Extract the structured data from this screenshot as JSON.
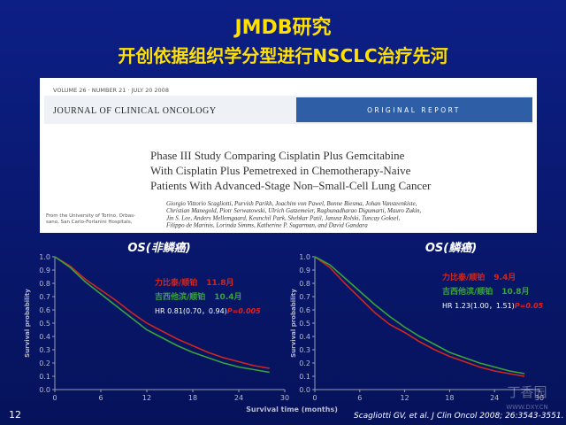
{
  "slide": {
    "title": "JMDB研究",
    "subtitle": "开创依据组织学分型进行NSCLC治疗先河",
    "x_label": "Survival time (months)",
    "page_number": "12",
    "citation": "Scagliotti GV, et al. J Clin Oncol 2008; 26:3543-3551.",
    "watermark": "丁香园",
    "watermark_url": "WWW.DXY.CN"
  },
  "article": {
    "volume_line": "VOLUME 26 · NUMBER 21 · JULY 20 2008",
    "journal": "JOURNAL OF CLINICAL ONCOLOGY",
    "section": "ORIGINAL REPORT",
    "title_lines": [
      "Phase III Study Comparing Cisplatin Plus Gemcitabine",
      "With Cisplatin Plus Pemetrexed in Chemotherapy-Naive",
      "Patients With Advanced-Stage Non–Small-Cell Lung Cancer"
    ],
    "author_lines": [
      "Giorgio Vittorio Scagliotti, Purvish Parikh, Joachim von Pawel, Bonne Biesma, Johan Vansteenkiste,",
      "Christian Manegold, Piotr Serwatowski, Ulrich Gatzemeier, Raghunadharao Digumarti, Mauro Zukin,",
      "Jin S. Lee, Anders Mellemgaard, Keunchil Park, Shehkar Patil, Janusz Rolski, Tuncay Goksel,",
      "Filippo de Marinis, Lorinda Simms, Katherine P. Sugarman, and David Gandara"
    ],
    "affiliation_lines": [
      "From the University of Torino, Orbas-",
      "sano, San Carlo-Forlanini Hospitals,"
    ]
  },
  "chart_data": [
    {
      "type": "line",
      "title": "OS(非鳞癌)",
      "y_label": "Survival probability",
      "x": [
        0,
        2,
        4,
        6,
        8,
        10,
        12,
        14,
        16,
        18,
        20,
        22,
        24,
        26,
        28
      ],
      "series": [
        {
          "name": "力比泰/顺铂",
          "median": "11.8月",
          "color": "#d0261c",
          "values": [
            1.0,
            0.93,
            0.83,
            0.75,
            0.67,
            0.58,
            0.5,
            0.44,
            0.38,
            0.33,
            0.28,
            0.24,
            0.21,
            0.18,
            0.16
          ]
        },
        {
          "name": "吉西他滨/顺铂",
          "median": "10.4月",
          "color": "#3aa33a",
          "values": [
            1.0,
            0.92,
            0.81,
            0.72,
            0.63,
            0.54,
            0.45,
            0.39,
            0.33,
            0.28,
            0.24,
            0.2,
            0.17,
            0.15,
            0.13
          ]
        }
      ],
      "hr_text": "HR 0.81(0.70，0.94)",
      "p_text": "P=0.005",
      "xlim": [
        0,
        30
      ],
      "ylim": [
        0,
        1
      ],
      "xticks": [
        0,
        6,
        12,
        18,
        24,
        30
      ],
      "yticks": [
        {
          "value": 0,
          "label": "0.0"
        },
        0.1,
        0.2,
        0.3,
        0.4,
        0.5,
        0.6,
        0.7,
        0.8,
        0.9,
        {
          "value": 1,
          "label": "1.0"
        }
      ]
    },
    {
      "type": "line",
      "title": "OS(鳞癌)",
      "y_label": "Survival probability",
      "x": [
        0,
        2,
        4,
        6,
        8,
        10,
        12,
        14,
        16,
        18,
        20,
        22,
        24,
        26,
        28
      ],
      "series": [
        {
          "name": "力比泰/顺铂",
          "median": "9.4月",
          "color": "#d0261c",
          "values": [
            1.0,
            0.92,
            0.8,
            0.69,
            0.58,
            0.49,
            0.43,
            0.36,
            0.3,
            0.25,
            0.21,
            0.17,
            0.14,
            0.12,
            0.1
          ]
        },
        {
          "name": "吉西他滨/顺铂",
          "median": "10.8月",
          "color": "#3aa33a",
          "values": [
            1.0,
            0.94,
            0.84,
            0.74,
            0.64,
            0.55,
            0.47,
            0.4,
            0.34,
            0.28,
            0.24,
            0.2,
            0.17,
            0.14,
            0.12
          ]
        }
      ],
      "hr_text": "HR 1.23(1.00，1.51)",
      "p_text": "P=0.05",
      "xlim": [
        0,
        30
      ],
      "ylim": [
        0,
        1
      ],
      "xticks": [
        0,
        6,
        12,
        18,
        24,
        30
      ],
      "yticks": [
        {
          "value": 0,
          "label": "0.0"
        },
        0.1,
        0.2,
        0.3,
        0.4,
        0.5,
        0.6,
        0.7,
        0.8,
        0.9,
        {
          "value": 1,
          "label": "1.0"
        }
      ]
    }
  ]
}
